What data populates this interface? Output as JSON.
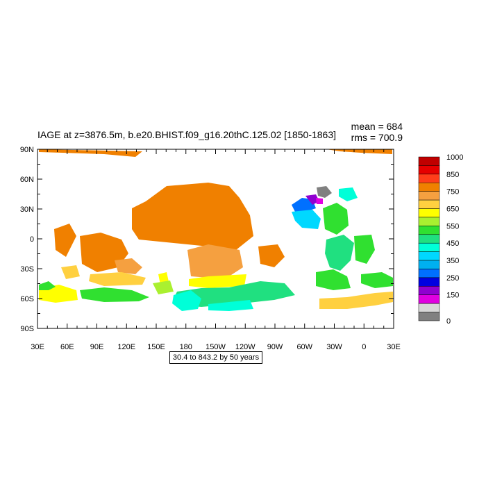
{
  "plot": {
    "title": "IAGE at z=3876.5m, b.e20.BHIST.f09_g16.20thC.125.02 [1850-1863]",
    "mean_label": "mean = 684",
    "rms_label": "rms = 700.9",
    "info_label": "30.4 to 843.2 by 50 years"
  },
  "axes": {
    "lat_labels": [
      "90N",
      "60N",
      "30N",
      "0",
      "30S",
      "60S",
      "90S"
    ],
    "lon_labels": [
      "30E",
      "60E",
      "90E",
      "120E",
      "150E",
      "180",
      "150W",
      "120W",
      "90W",
      "60W",
      "30W",
      "0",
      "30E"
    ]
  },
  "colorbar": {
    "labels": [
      "1000",
      "850",
      "750",
      "650",
      "550",
      "450",
      "350",
      "250",
      "150",
      "0"
    ],
    "colors": [
      "#c00000",
      "#e60000",
      "#ff3d1a",
      "#f08000",
      "#f5a040",
      "#ffd040",
      "#ffff00",
      "#aaf030",
      "#30e030",
      "#20e080",
      "#00ffd8",
      "#00d8ff",
      "#00b0f0",
      "#0070ff",
      "#0000e0",
      "#9000d0",
      "#e000e0",
      "#d8d8d8",
      "#808080"
    ]
  },
  "colors": {
    "orange": "#f08000",
    "light_orange": "#f5a040",
    "gold": "#ffd040",
    "yellow": "#ffff00",
    "lime": "#aaf030",
    "green": "#30e030",
    "sea_green": "#20e080",
    "cyan": "#00ffd8",
    "sky": "#00d8ff",
    "blue": "#0070ff",
    "purple": "#9000d0",
    "magenta": "#e000e0",
    "gray": "#808080"
  }
}
